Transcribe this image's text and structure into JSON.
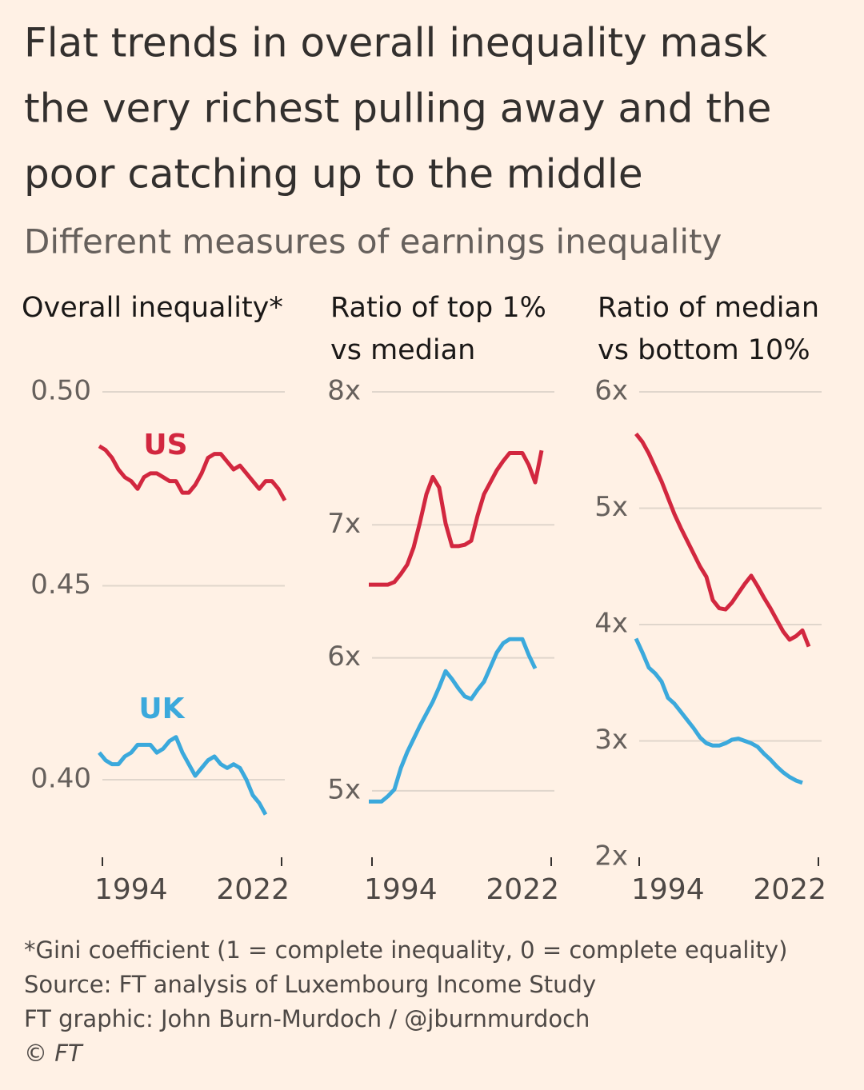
{
  "title": [
    "Flat trends in overall inequality mask",
    "the very richest pulling away and the",
    "poor catching up to the middle"
  ],
  "subtitle": "Different measures of earnings inequality",
  "chart_data": [
    {
      "type": "line",
      "title": [
        "Overall inequality*"
      ],
      "x": [
        1994,
        1995,
        1996,
        1997,
        1998,
        1999,
        2000,
        2001,
        2002,
        2003,
        2004,
        2005,
        2006,
        2007,
        2008,
        2009,
        2010,
        2011,
        2012,
        2013,
        2014,
        2015,
        2016,
        2017,
        2018,
        2019,
        2020,
        2021,
        2022,
        2023
      ],
      "xlim": [
        1994,
        2023
      ],
      "xticks": [
        1994,
        2022
      ],
      "ylim": [
        0.38,
        0.5
      ],
      "yticks": [
        {
          "value": 0.5,
          "label": "0.50"
        },
        0.45,
        {
          "value": 0.4,
          "label": "0.40"
        }
      ],
      "grid": true,
      "series": [
        {
          "name": "US",
          "color": "#d2273f",
          "values": [
            0.486,
            0.485,
            0.483,
            0.48,
            0.478,
            0.477,
            0.475,
            0.478,
            0.479,
            0.479,
            0.478,
            0.477,
            0.477,
            0.474,
            0.474,
            0.476,
            0.479,
            0.483,
            0.484,
            0.484,
            0.482,
            0.48,
            0.481,
            0.479,
            0.477,
            0.475,
            0.477,
            0.477,
            0.475,
            0.472
          ]
        },
        {
          "name": "UK",
          "color": "#3ba9dc",
          "values": [
            0.407,
            0.405,
            0.404,
            0.404,
            0.406,
            0.407,
            0.409,
            0.409,
            0.409,
            0.407,
            0.408,
            0.41,
            0.411,
            0.407,
            0.404,
            0.401,
            0.403,
            0.405,
            0.406,
            0.404,
            0.403,
            0.404,
            0.403,
            0.4,
            0.396,
            0.394,
            0.391,
            null,
            null,
            null
          ]
        }
      ]
    },
    {
      "type": "line",
      "title": [
        "Ratio of top 1%",
        "vs median"
      ],
      "x": [
        1994,
        1995,
        1996,
        1997,
        1998,
        1999,
        2000,
        2001,
        2002,
        2003,
        2004,
        2005,
        2006,
        2007,
        2008,
        2009,
        2010,
        2011,
        2012,
        2013,
        2014,
        2015,
        2016,
        2017,
        2018,
        2019,
        2020,
        2021
      ],
      "xlim": [
        1994,
        2023
      ],
      "xticks": [
        1994,
        2022
      ],
      "ylim": [
        4.5,
        8
      ],
      "yticks": [
        {
          "value": 8,
          "label": "8x"
        },
        {
          "value": 7,
          "label": "7x"
        },
        {
          "value": 6,
          "label": "6x"
        },
        {
          "value": 5,
          "label": "5x"
        }
      ],
      "grid": true,
      "series": [
        {
          "color": "#d2273f",
          "values": [
            6.55,
            6.55,
            6.55,
            6.55,
            6.57,
            6.63,
            6.7,
            6.83,
            7.02,
            7.23,
            7.36,
            7.28,
            7.01,
            6.84,
            6.84,
            6.85,
            6.88,
            7.07,
            7.23,
            7.32,
            7.41,
            7.48,
            7.54,
            7.54,
            7.54,
            7.45,
            7.32,
            7.56
          ]
        },
        {
          "color": "#3ba9dc",
          "values": [
            4.92,
            4.92,
            4.92,
            4.96,
            5.01,
            5.17,
            5.29,
            5.39,
            5.49,
            5.58,
            5.67,
            5.78,
            5.9,
            5.84,
            5.77,
            5.71,
            5.69,
            5.76,
            5.82,
            5.93,
            6.04,
            6.11,
            6.14,
            6.14,
            6.14,
            6.02,
            5.92,
            null
          ]
        }
      ]
    },
    {
      "type": "line",
      "title": [
        "Ratio of median",
        "vs bottom 10%"
      ],
      "x": [
        1994,
        1995,
        1996,
        1997,
        1998,
        1999,
        2000,
        2001,
        2002,
        2003,
        2004,
        2005,
        2006,
        2007,
        2008,
        2009,
        2010,
        2011,
        2012,
        2013,
        2014,
        2015,
        2016,
        2017,
        2018,
        2019,
        2020,
        2021
      ],
      "xlim": [
        1994,
        2023
      ],
      "xticks": [
        1994,
        2022
      ],
      "ylim": [
        2,
        6
      ],
      "yticks": [
        {
          "value": 6,
          "label": "6x"
        },
        {
          "value": 5,
          "label": "5x"
        },
        {
          "value": 4,
          "label": "4x"
        },
        {
          "value": 3,
          "label": "3x"
        },
        {
          "value": 2,
          "label": "2x"
        }
      ],
      "grid": true,
      "series": [
        {
          "color": "#d2273f",
          "values": [
            5.64,
            5.57,
            5.47,
            5.35,
            5.23,
            5.09,
            4.95,
            4.83,
            4.72,
            4.61,
            4.5,
            4.41,
            4.21,
            4.14,
            4.13,
            4.19,
            4.27,
            4.35,
            4.42,
            4.33,
            4.23,
            4.14,
            4.04,
            3.94,
            3.87,
            3.9,
            3.95,
            3.81
          ]
        },
        {
          "color": "#3ba9dc",
          "values": [
            3.88,
            3.76,
            3.63,
            3.58,
            3.51,
            3.37,
            3.32,
            3.25,
            3.18,
            3.11,
            3.03,
            2.98,
            2.96,
            2.96,
            2.98,
            3.01,
            3.02,
            3.0,
            2.98,
            2.95,
            2.89,
            2.84,
            2.78,
            2.73,
            2.69,
            2.66,
            2.64,
            null
          ]
        }
      ]
    }
  ],
  "notes": [
    "*Gini coefficient (1 = complete inequality, 0 = complete equality)",
    "Source: FT analysis of Luxembourg Income Study",
    "FT graphic: John Burn-Murdoch / @jburnmurdoch",
    "© FT"
  ]
}
